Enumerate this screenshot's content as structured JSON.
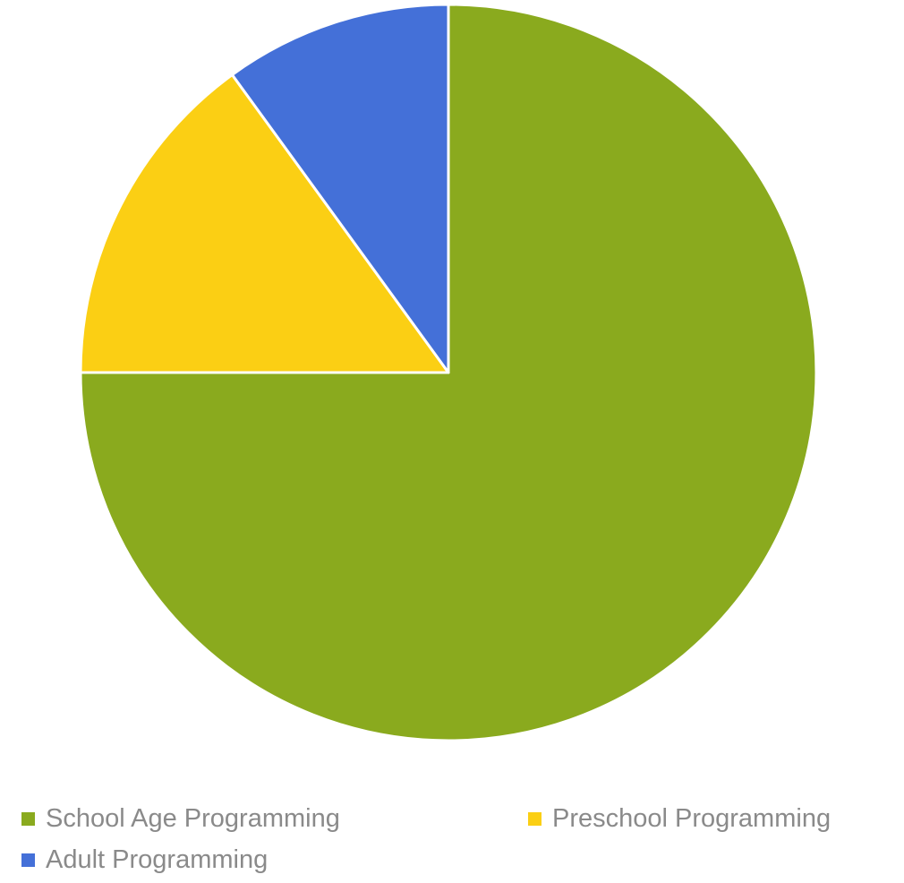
{
  "chart_data": {
    "type": "pie",
    "title": "",
    "categories": [
      "School Age Programming",
      "Preschool Programming",
      "Adult Programming"
    ],
    "values": [
      75,
      15,
      10
    ],
    "colors": [
      "#8aaa1e",
      "#fbcf14",
      "#4470d8"
    ],
    "start_angle_deg": 0,
    "direction": "clockwise",
    "legend_position": "bottom",
    "slice_border_color": "#ffffff"
  },
  "legend": {
    "items": [
      {
        "label": "School Age Programming",
        "color": "#8aaa1e"
      },
      {
        "label": "Preschool Programming",
        "color": "#fbcf14"
      },
      {
        "label": "Adult Programming",
        "color": "#4470d8"
      }
    ]
  }
}
